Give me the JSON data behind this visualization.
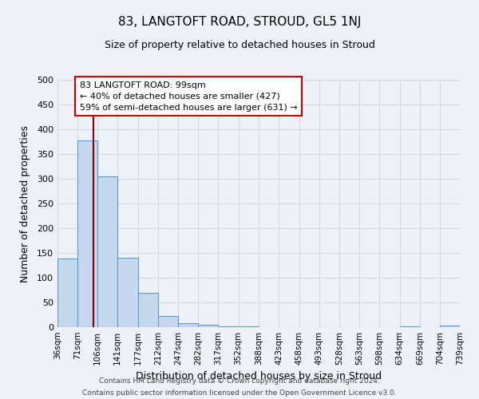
{
  "title": "83, LANGTOFT ROAD, STROUD, GL5 1NJ",
  "subtitle": "Size of property relative to detached houses in Stroud",
  "xlabel": "Distribution of detached houses by size in Stroud",
  "ylabel": "Number of detached properties",
  "bar_edges": [
    36,
    71,
    106,
    141,
    177,
    212,
    247,
    282,
    317,
    352,
    388,
    423,
    458,
    493,
    528,
    563,
    598,
    634,
    669,
    704,
    739
  ],
  "bar_heights": [
    139,
    378,
    305,
    141,
    69,
    23,
    8,
    5,
    2,
    1,
    0,
    0,
    0,
    0,
    0,
    0,
    0,
    2,
    0,
    3
  ],
  "bar_color": "#c5d8ed",
  "bar_edge_color": "#5b9bd5",
  "property_line_x": 99,
  "property_line_color": "#8b0000",
  "annotation_line1": "83 LANGTOFT ROAD: 99sqm",
  "annotation_line2": "← 40% of detached houses are smaller (427)",
  "annotation_line3": "59% of semi-detached houses are larger (631) →",
  "annotation_box_color": "#ffffff",
  "annotation_box_edge": "#cc0000",
  "ylim": [
    0,
    500
  ],
  "tick_labels": [
    "36sqm",
    "71sqm",
    "106sqm",
    "141sqm",
    "177sqm",
    "212sqm",
    "247sqm",
    "282sqm",
    "317sqm",
    "352sqm",
    "388sqm",
    "423sqm",
    "458sqm",
    "493sqm",
    "528sqm",
    "563sqm",
    "598sqm",
    "634sqm",
    "669sqm",
    "704sqm",
    "739sqm"
  ],
  "background_color": "#eef2f8",
  "grid_color": "#d0d8e8",
  "footer_line1": "Contains HM Land Registry data © Crown copyright and database right 2024.",
  "footer_line2": "Contains public sector information licensed under the Open Government Licence v3.0."
}
